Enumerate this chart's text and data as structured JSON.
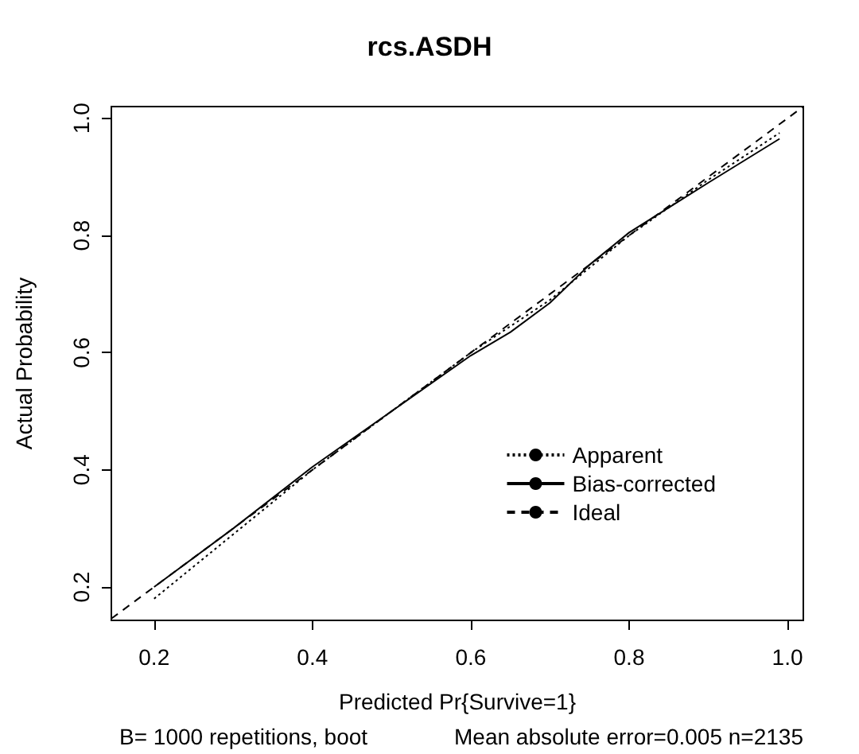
{
  "chart_data": {
    "type": "line",
    "title": "rcs.ASDH",
    "xlabel": "Predicted Pr{Survive=1}",
    "ylabel": "Actual Probability",
    "xlim": [
      0.146,
      1.02
    ],
    "ylim": [
      0.143,
      1.02
    ],
    "xticks": [
      0.2,
      0.4,
      0.6,
      0.8,
      {
        "value": 1,
        "label": "1.0"
      }
    ],
    "yticks": [
      0.2,
      0.4,
      0.6,
      0.8,
      {
        "value": 1,
        "label": "1.0"
      }
    ],
    "series": [
      {
        "name": "Apparent",
        "color": "#000000",
        "line_style": "dotted",
        "x": [
          0.2,
          0.3,
          0.4,
          0.5,
          0.6,
          0.7,
          0.75,
          0.8,
          0.9,
          0.99
        ],
        "values": [
          0.18,
          0.29,
          0.4,
          0.5,
          0.6,
          0.69,
          0.745,
          0.8,
          0.895,
          0.975
        ]
      },
      {
        "name": "Bias-corrected",
        "color": "#000000",
        "line_style": "solid",
        "x": [
          0.2,
          0.3,
          0.4,
          0.5,
          0.6,
          0.65,
          0.7,
          0.75,
          0.8,
          0.9,
          0.99
        ],
        "values": [
          0.2,
          0.3,
          0.405,
          0.5,
          0.595,
          0.635,
          0.685,
          0.75,
          0.805,
          0.89,
          0.965
        ]
      },
      {
        "name": "Ideal",
        "color": "#000000",
        "line_style": "dashed",
        "x": [
          0.146,
          1.02
        ],
        "values": [
          0.146,
          1.02
        ]
      }
    ],
    "legend": "bottom right",
    "grid": false,
    "marker": "none",
    "annotations": [
      "B= 1000 repetitions, boot",
      "Mean absolute error=0.005 n=2135"
    ]
  }
}
